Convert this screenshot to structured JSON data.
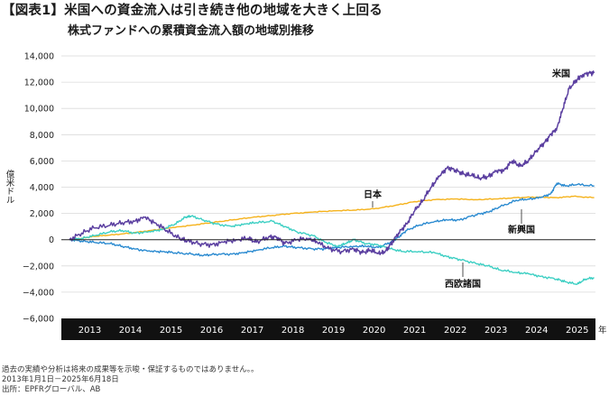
{
  "header": {
    "badge": "【図表1】",
    "title": "米国への資金流入は引き続き他の地域を大きく上回る",
    "subtitle": "株式ファンドへの累積資金流入額の地域別推移"
  },
  "footer": {
    "note": "過去の実績や分析は将来の成果等を示唆・保証するものではありません。。",
    "period": "2013年1月1日－2025年6月18日",
    "source": "出所：EPFRグローバル、AB"
  },
  "chart_data": {
    "type": "line",
    "ylabel": "億米ドル",
    "xlabel_unit": "年",
    "ylim": [
      -6000,
      14000
    ],
    "yticks": [
      -6000,
      -4000,
      -2000,
      0,
      2000,
      4000,
      6000,
      8000,
      10000,
      12000,
      14000
    ],
    "ytick_labels": [
      "−6,000",
      "−4,000",
      "−2,000",
      "0",
      "2,000",
      "4,000",
      "6,000",
      "8,000",
      "10,000",
      "12,000",
      "14,000"
    ],
    "xlim": [
      2012.8,
      2025.95
    ],
    "xtick_labels": [
      "2013",
      "2014",
      "2015",
      "2016",
      "2017",
      "2018",
      "2019",
      "2020",
      "2021",
      "2022",
      "2023",
      "2024",
      "2025"
    ],
    "grid": "horizontal",
    "series": [
      {
        "name": "米国",
        "color": "#5b3fa0",
        "x": [
          2013.0,
          2013.3,
          2013.6,
          2014.0,
          2014.3,
          2014.6,
          2014.85,
          2015.1,
          2015.4,
          2015.7,
          2015.9,
          2016.2,
          2016.5,
          2016.8,
          2017.1,
          2017.4,
          2017.6,
          2017.9,
          2018.1,
          2018.3,
          2018.6,
          2018.9,
          2019.1,
          2019.4,
          2019.7,
          2020.0,
          2020.2,
          2020.4,
          2020.6,
          2020.75,
          2020.9,
          2021.1,
          2021.3,
          2021.5,
          2021.7,
          2021.9,
          2022.1,
          2022.3,
          2022.5,
          2022.7,
          2022.9,
          2023.1,
          2023.3,
          2023.5,
          2023.7,
          2023.9,
          2024.1,
          2024.3,
          2024.5,
          2024.7,
          2024.85,
          2025.0,
          2025.15,
          2025.3,
          2025.5,
          2025.6,
          2025.8,
          2025.92
        ],
        "values": [
          0,
          500,
          900,
          1100,
          1300,
          1400,
          1700,
          1300,
          700,
          100,
          -100,
          -300,
          -400,
          -200,
          0,
          100,
          -200,
          200,
          200,
          -300,
          0,
          100,
          -200,
          -700,
          -900,
          -700,
          -1000,
          -800,
          -1000,
          -1000,
          -400,
          500,
          1200,
          2200,
          3000,
          4000,
          4800,
          5500,
          5300,
          5000,
          4900,
          4700,
          4800,
          5200,
          5300,
          6000,
          5600,
          6000,
          6800,
          7400,
          8000,
          8500,
          10000,
          11500,
          12200,
          12500,
          12700,
          12700
        ]
      },
      {
        "name": "日本",
        "color": "#f5b21b",
        "x": [
          2013.0,
          2013.3,
          2013.6,
          2014.0,
          2014.5,
          2015.0,
          2015.5,
          2016.0,
          2016.5,
          2017.0,
          2017.5,
          2018.0,
          2018.5,
          2019.0,
          2019.5,
          2020.0,
          2020.5,
          2021.0,
          2021.5,
          2022.0,
          2022.5,
          2023.0,
          2023.5,
          2024.0,
          2024.5,
          2025.0,
          2025.4,
          2025.92
        ],
        "values": [
          0,
          100,
          250,
          350,
          500,
          700,
          900,
          1100,
          1300,
          1500,
          1700,
          1850,
          2000,
          2100,
          2200,
          2250,
          2350,
          2600,
          2900,
          3050,
          3100,
          3050,
          3100,
          3200,
          3250,
          3200,
          3300,
          3200
        ]
      },
      {
        "name": "新興国",
        "color": "#2a8ad0",
        "x": [
          2013.0,
          2013.3,
          2013.6,
          2014.0,
          2014.3,
          2014.6,
          2015.0,
          2015.3,
          2015.6,
          2016.0,
          2016.3,
          2016.6,
          2017.0,
          2017.3,
          2017.6,
          2018.0,
          2018.3,
          2018.6,
          2019.0,
          2019.3,
          2019.6,
          2020.0,
          2020.3,
          2020.6,
          2020.9,
          2021.1,
          2021.3,
          2021.6,
          2022.0,
          2022.3,
          2022.6,
          2023.0,
          2023.3,
          2023.6,
          2024.0,
          2024.3,
          2024.6,
          2024.85,
          2025.0,
          2025.2,
          2025.5,
          2025.92
        ],
        "values": [
          0,
          -100,
          -200,
          -300,
          -500,
          -700,
          -900,
          -900,
          -1000,
          -1100,
          -1200,
          -1100,
          -1100,
          -1000,
          -800,
          -600,
          -500,
          -600,
          -700,
          -700,
          -600,
          -500,
          -500,
          -600,
          -200,
          200,
          700,
          1100,
          1400,
          1500,
          1500,
          1900,
          2100,
          2500,
          3000,
          3100,
          3200,
          3500,
          4300,
          4100,
          4200,
          4100
        ]
      },
      {
        "name": "西欧諸国",
        "color": "#3dcfc3",
        "x": [
          2013.0,
          2013.3,
          2013.6,
          2014.0,
          2014.3,
          2014.6,
          2015.0,
          2015.3,
          2015.6,
          2015.85,
          2016.0,
          2016.3,
          2016.6,
          2017.0,
          2017.3,
          2017.6,
          2018.0,
          2018.3,
          2018.6,
          2019.0,
          2019.3,
          2019.6,
          2019.8,
          2020.0,
          2020.3,
          2020.6,
          2020.9,
          2021.2,
          2021.6,
          2022.0,
          2022.3,
          2022.6,
          2023.0,
          2023.3,
          2023.6,
          2024.0,
          2024.3,
          2024.6,
          2025.0,
          2025.2,
          2025.5,
          2025.7,
          2025.92
        ],
        "values": [
          0,
          100,
          300,
          600,
          700,
          500,
          600,
          800,
          1200,
          1700,
          1800,
          1500,
          1200,
          1000,
          1200,
          1300,
          1400,
          1000,
          600,
          300,
          -200,
          -500,
          -300,
          0,
          -300,
          -400,
          -700,
          -900,
          -900,
          -1000,
          -1300,
          -1500,
          -1800,
          -2000,
          -2300,
          -2500,
          -2600,
          -2800,
          -3000,
          -3200,
          -3400,
          -3000,
          -2900
        ]
      }
    ],
    "annotations": [
      {
        "text": "米国",
        "series": "米国"
      },
      {
        "text": "日本",
        "series": "日本"
      },
      {
        "text": "新興国",
        "series": "新興国"
      },
      {
        "text": "西欧諸国",
        "series": "西欧諸国"
      }
    ]
  }
}
